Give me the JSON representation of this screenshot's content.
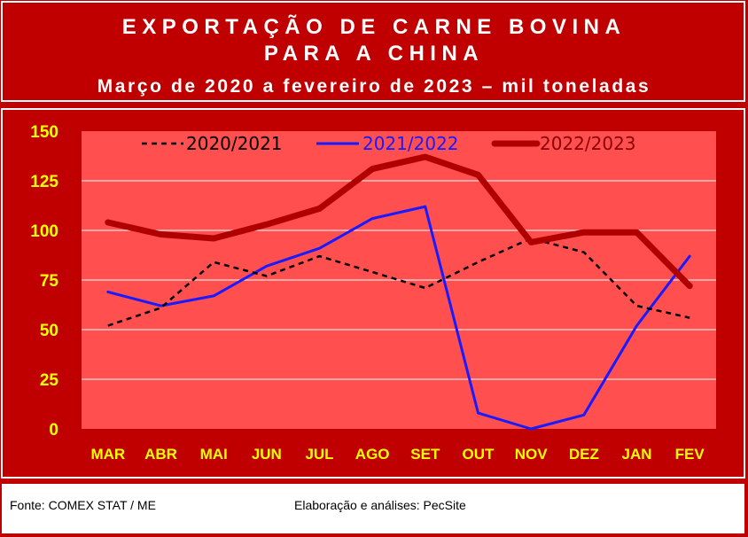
{
  "header": {
    "title_line1": "EXPORTAÇÃO DE CARNE BOVINA",
    "title_line2": "PARA A CHINA",
    "subtitle": "Março de 2020 a fevereiro de 2023 – mil toneladas"
  },
  "footer": {
    "source": "Fonte: COMEX STAT / ME",
    "credit": "Elaboração e análises: PecSite"
  },
  "colors": {
    "frame": "#c00000",
    "plot_area": "#ff4f4f",
    "tick_labels": "#ffff00",
    "series_2020_2021": "#000000",
    "series_2021_2022": "#1a1aff",
    "series_2022_2023": "#b00000"
  },
  "chart_data": {
    "type": "line",
    "title": "EXPORTAÇÃO DE CARNE BOVINA PARA A CHINA",
    "subtitle": "Março de 2020 a fevereiro de 2023 – mil toneladas",
    "categories": [
      "MAR",
      "ABR",
      "MAI",
      "JUN",
      "JUL",
      "AGO",
      "SET",
      "OUT",
      "NOV",
      "DEZ",
      "JAN",
      "FEV"
    ],
    "y_ticks": [
      0,
      25,
      50,
      75,
      100,
      125,
      150
    ],
    "ylim": [
      0,
      150
    ],
    "grid": true,
    "legend": "top",
    "series": [
      {
        "name": "2020/2021",
        "style": "dashed",
        "values": [
          52,
          61,
          84,
          77,
          87,
          79,
          71,
          84,
          96,
          89,
          62,
          56
        ]
      },
      {
        "name": "2021/2022",
        "style": "thin",
        "values": [
          69,
          62,
          67,
          82,
          91,
          106,
          112,
          8,
          0,
          7,
          52,
          87
        ]
      },
      {
        "name": "2022/2023",
        "style": "thick",
        "values": [
          104,
          98,
          96,
          103,
          111,
          131,
          137,
          128,
          94,
          99,
          99,
          72
        ]
      }
    ]
  }
}
